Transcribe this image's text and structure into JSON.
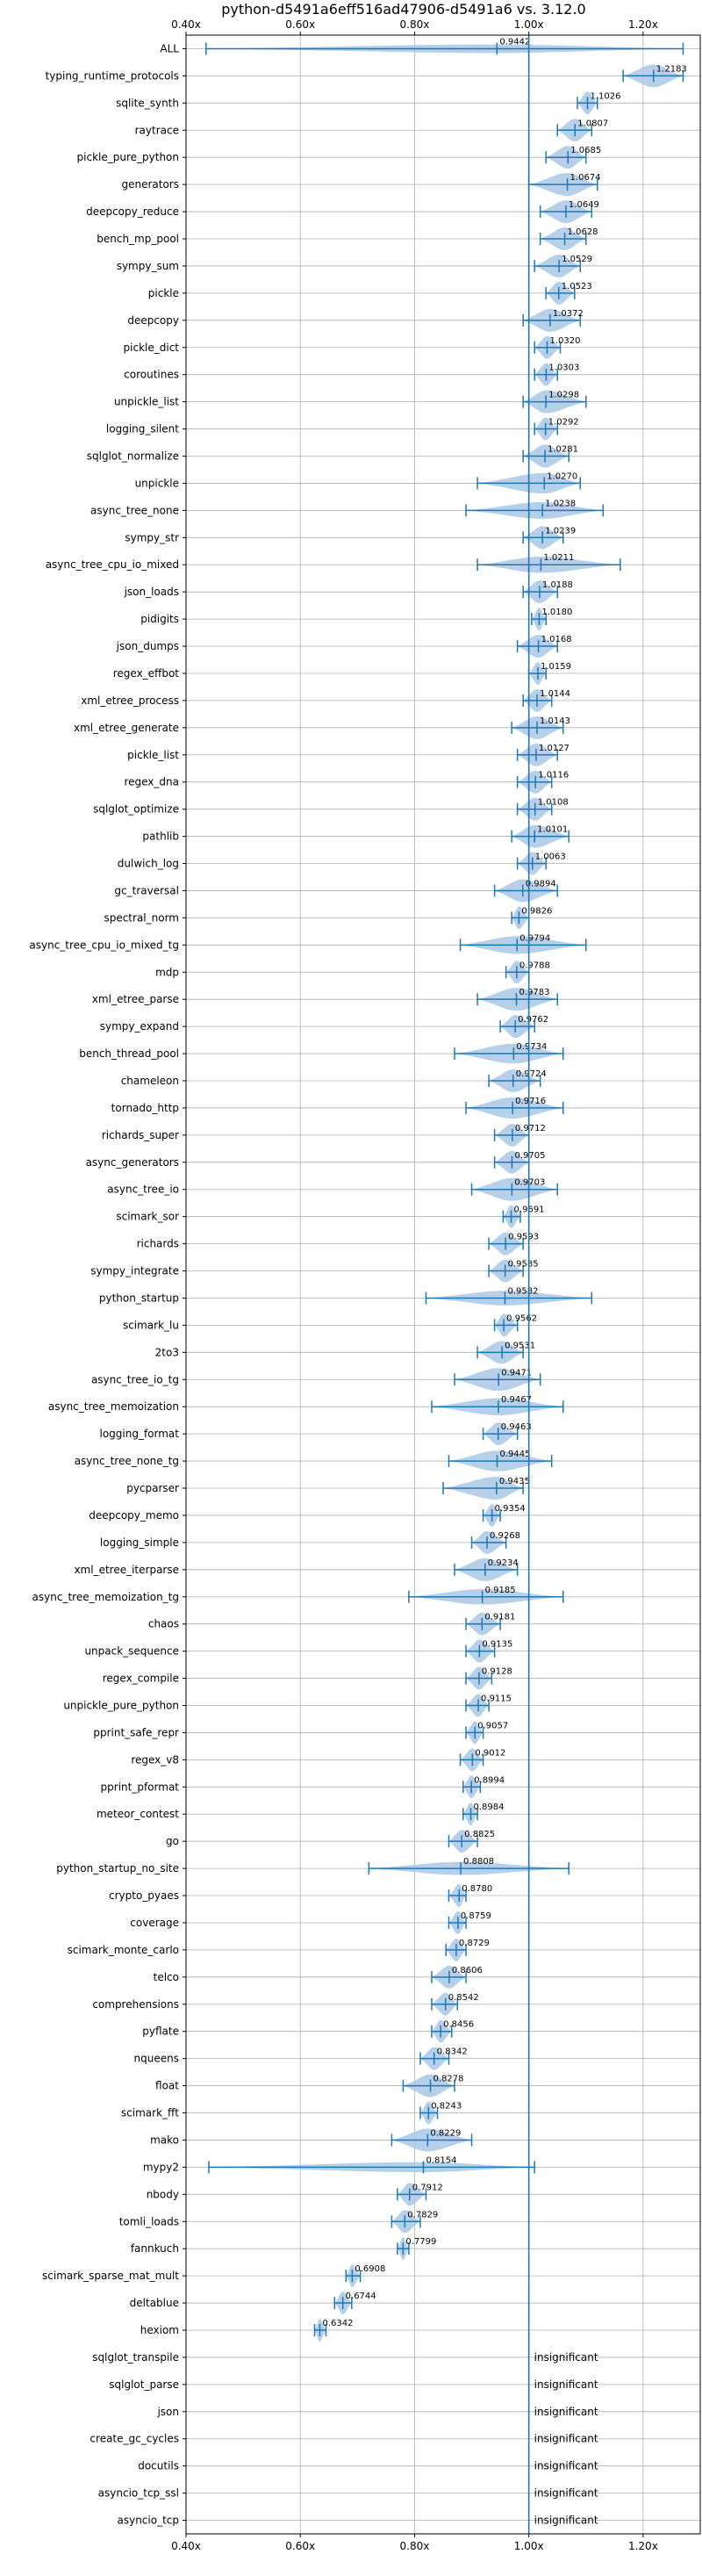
{
  "chart_data": {
    "type": "violin",
    "title": "python-d5491a6eff516ad47906-d5491a6 vs. 3.12.0",
    "xlabel": "",
    "ylabel": "",
    "xlim": [
      0.4,
      1.3
    ],
    "x_ticks": [
      0.4,
      0.6,
      0.8,
      1.0,
      1.2
    ],
    "x_tick_labels": [
      "0.40x",
      "0.60x",
      "0.80x",
      "1.00x",
      "1.20x"
    ],
    "reference_x": 1.0,
    "grid": true,
    "colors": {
      "violin": "#aac8e6",
      "line": "#1f77b4",
      "grid": "#b0b0b0",
      "ref": "#1f77b4"
    },
    "benchmarks": [
      {
        "name": "ALL",
        "mean": 0.9442,
        "label": "0.9442",
        "min": 0.435,
        "max": 1.27
      },
      {
        "name": "typing_runtime_protocols",
        "mean": 1.2183,
        "label": "1.2183",
        "min": 1.165,
        "max": 1.27
      },
      {
        "name": "sqlite_synth",
        "mean": 1.1026,
        "label": "1.1026",
        "min": 1.085,
        "max": 1.12
      },
      {
        "name": "raytrace",
        "mean": 1.0807,
        "label": "1.0807",
        "min": 1.05,
        "max": 1.11
      },
      {
        "name": "pickle_pure_python",
        "mean": 1.0685,
        "label": "1.0685",
        "min": 1.03,
        "max": 1.1
      },
      {
        "name": "generators",
        "mean": 1.0674,
        "label": "1.0674",
        "min": 1.0,
        "max": 1.12
      },
      {
        "name": "deepcopy_reduce",
        "mean": 1.0649,
        "label": "1.0649",
        "min": 1.02,
        "max": 1.11
      },
      {
        "name": "bench_mp_pool",
        "mean": 1.0628,
        "label": "1.0628",
        "min": 1.02,
        "max": 1.1
      },
      {
        "name": "sympy_sum",
        "mean": 1.0529,
        "label": "1.0529",
        "min": 1.01,
        "max": 1.09
      },
      {
        "name": "pickle",
        "mean": 1.0523,
        "label": "1.0523",
        "min": 1.03,
        "max": 1.08
      },
      {
        "name": "deepcopy",
        "mean": 1.0372,
        "label": "1.0372",
        "min": 0.99,
        "max": 1.09
      },
      {
        "name": "pickle_dict",
        "mean": 1.032,
        "label": "1.0320",
        "min": 1.01,
        "max": 1.055
      },
      {
        "name": "coroutines",
        "mean": 1.0303,
        "label": "1.0303",
        "min": 1.01,
        "max": 1.05
      },
      {
        "name": "unpickle_list",
        "mean": 1.0298,
        "label": "1.0298",
        "min": 0.99,
        "max": 1.1
      },
      {
        "name": "logging_silent",
        "mean": 1.0292,
        "label": "1.0292",
        "min": 1.01,
        "max": 1.05
      },
      {
        "name": "sqlglot_normalize",
        "mean": 1.0281,
        "label": "1.0281",
        "min": 0.99,
        "max": 1.07
      },
      {
        "name": "unpickle",
        "mean": 1.027,
        "label": "1.0270",
        "min": 0.91,
        "max": 1.09
      },
      {
        "name": "async_tree_none",
        "mean": 1.0238,
        "label": "1.0238",
        "min": 0.89,
        "max": 1.13
      },
      {
        "name": "sympy_str",
        "mean": 1.0239,
        "label": "1.0239",
        "min": 0.99,
        "max": 1.06
      },
      {
        "name": "async_tree_cpu_io_mixed",
        "mean": 1.0211,
        "label": "1.0211",
        "min": 0.91,
        "max": 1.16
      },
      {
        "name": "json_loads",
        "mean": 1.0188,
        "label": "1.0188",
        "min": 0.99,
        "max": 1.05
      },
      {
        "name": "pidigits",
        "mean": 1.018,
        "label": "1.0180",
        "min": 1.005,
        "max": 1.03
      },
      {
        "name": "json_dumps",
        "mean": 1.0168,
        "label": "1.0168",
        "min": 0.98,
        "max": 1.05
      },
      {
        "name": "regex_effbot",
        "mean": 1.0159,
        "label": "1.0159",
        "min": 1.0,
        "max": 1.03
      },
      {
        "name": "xml_etree_process",
        "mean": 1.0144,
        "label": "1.0144",
        "min": 0.99,
        "max": 1.04
      },
      {
        "name": "xml_etree_generate",
        "mean": 1.0143,
        "label": "1.0143",
        "min": 0.97,
        "max": 1.06
      },
      {
        "name": "pickle_list",
        "mean": 1.0127,
        "label": "1.0127",
        "min": 0.98,
        "max": 1.05
      },
      {
        "name": "regex_dna",
        "mean": 1.0116,
        "label": "1.0116",
        "min": 0.98,
        "max": 1.04
      },
      {
        "name": "sqlglot_optimize",
        "mean": 1.0108,
        "label": "1.0108",
        "min": 0.98,
        "max": 1.04
      },
      {
        "name": "pathlib",
        "mean": 1.0101,
        "label": "1.0101",
        "min": 0.97,
        "max": 1.07
      },
      {
        "name": "dulwich_log",
        "mean": 1.0063,
        "label": "1.0063",
        "min": 0.98,
        "max": 1.03
      },
      {
        "name": "gc_traversal",
        "mean": 0.9894,
        "label": "0.9894",
        "min": 0.94,
        "max": 1.05
      },
      {
        "name": "spectral_norm",
        "mean": 0.9826,
        "label": "0.9826",
        "min": 0.97,
        "max": 1.0
      },
      {
        "name": "async_tree_cpu_io_mixed_tg",
        "mean": 0.9794,
        "label": "0.9794",
        "min": 0.88,
        "max": 1.1
      },
      {
        "name": "mdp",
        "mean": 0.9788,
        "label": "0.9788",
        "min": 0.96,
        "max": 1.0
      },
      {
        "name": "xml_etree_parse",
        "mean": 0.9783,
        "label": "0.9783",
        "min": 0.91,
        "max": 1.05
      },
      {
        "name": "sympy_expand",
        "mean": 0.9762,
        "label": "0.9762",
        "min": 0.95,
        "max": 1.01
      },
      {
        "name": "bench_thread_pool",
        "mean": 0.9734,
        "label": "0.9734",
        "min": 0.87,
        "max": 1.06
      },
      {
        "name": "chameleon",
        "mean": 0.9724,
        "label": "0.9724",
        "min": 0.93,
        "max": 1.02
      },
      {
        "name": "tornado_http",
        "mean": 0.9716,
        "label": "0.9716",
        "min": 0.89,
        "max": 1.06
      },
      {
        "name": "richards_super",
        "mean": 0.9712,
        "label": "0.9712",
        "min": 0.94,
        "max": 1.0
      },
      {
        "name": "async_generators",
        "mean": 0.9705,
        "label": "0.9705",
        "min": 0.94,
        "max": 1.0
      },
      {
        "name": "async_tree_io",
        "mean": 0.9703,
        "label": "0.9703",
        "min": 0.9,
        "max": 1.05
      },
      {
        "name": "scimark_sor",
        "mean": 0.9691,
        "label": "0.9691",
        "min": 0.955,
        "max": 0.985
      },
      {
        "name": "richards",
        "mean": 0.9593,
        "label": "0.9593",
        "min": 0.93,
        "max": 0.99
      },
      {
        "name": "sympy_integrate",
        "mean": 0.9585,
        "label": "0.9585",
        "min": 0.93,
        "max": 0.99
      },
      {
        "name": "python_startup",
        "mean": 0.9582,
        "label": "0.9582",
        "min": 0.82,
        "max": 1.11
      },
      {
        "name": "scimark_lu",
        "mean": 0.9562,
        "label": "0.9562",
        "min": 0.94,
        "max": 0.98
      },
      {
        "name": "2to3",
        "mean": 0.9531,
        "label": "0.9531",
        "min": 0.91,
        "max": 0.99
      },
      {
        "name": "async_tree_io_tg",
        "mean": 0.9471,
        "label": "0.9471",
        "min": 0.87,
        "max": 1.02
      },
      {
        "name": "async_tree_memoization",
        "mean": 0.9467,
        "label": "0.9467",
        "min": 0.83,
        "max": 1.06
      },
      {
        "name": "logging_format",
        "mean": 0.9463,
        "label": "0.9463",
        "min": 0.92,
        "max": 0.98
      },
      {
        "name": "async_tree_none_tg",
        "mean": 0.9445,
        "label": "0.9445",
        "min": 0.86,
        "max": 1.04
      },
      {
        "name": "pycparser",
        "mean": 0.9435,
        "label": "0.9435",
        "min": 0.85,
        "max": 0.99
      },
      {
        "name": "deepcopy_memo",
        "mean": 0.9354,
        "label": "0.9354",
        "min": 0.92,
        "max": 0.95
      },
      {
        "name": "logging_simple",
        "mean": 0.9268,
        "label": "0.9268",
        "min": 0.9,
        "max": 0.96
      },
      {
        "name": "xml_etree_iterparse",
        "mean": 0.9234,
        "label": "0.9234",
        "min": 0.87,
        "max": 0.98
      },
      {
        "name": "async_tree_memoization_tg",
        "mean": 0.9185,
        "label": "0.9185",
        "min": 0.79,
        "max": 1.06
      },
      {
        "name": "chaos",
        "mean": 0.9181,
        "label": "0.9181",
        "min": 0.89,
        "max": 0.95
      },
      {
        "name": "unpack_sequence",
        "mean": 0.9135,
        "label": "0.9135",
        "min": 0.89,
        "max": 0.94
      },
      {
        "name": "regex_compile",
        "mean": 0.9128,
        "label": "0.9128",
        "min": 0.89,
        "max": 0.935
      },
      {
        "name": "unpickle_pure_python",
        "mean": 0.9115,
        "label": "0.9115",
        "min": 0.89,
        "max": 0.93
      },
      {
        "name": "pprint_safe_repr",
        "mean": 0.9057,
        "label": "0.9057",
        "min": 0.89,
        "max": 0.92
      },
      {
        "name": "regex_v8",
        "mean": 0.9012,
        "label": "0.9012",
        "min": 0.88,
        "max": 0.92
      },
      {
        "name": "pprint_pformat",
        "mean": 0.8994,
        "label": "0.8994",
        "min": 0.885,
        "max": 0.915
      },
      {
        "name": "meteor_contest",
        "mean": 0.8984,
        "label": "0.8984",
        "min": 0.885,
        "max": 0.91
      },
      {
        "name": "go",
        "mean": 0.8825,
        "label": "0.8825",
        "min": 0.86,
        "max": 0.91
      },
      {
        "name": "python_startup_no_site",
        "mean": 0.8808,
        "label": "0.8808",
        "min": 0.72,
        "max": 1.07
      },
      {
        "name": "crypto_pyaes",
        "mean": 0.878,
        "label": "0.8780",
        "min": 0.86,
        "max": 0.89
      },
      {
        "name": "coverage",
        "mean": 0.8759,
        "label": "0.8759",
        "min": 0.86,
        "max": 0.89
      },
      {
        "name": "scimark_monte_carlo",
        "mean": 0.8729,
        "label": "0.8729",
        "min": 0.855,
        "max": 0.89
      },
      {
        "name": "telco",
        "mean": 0.8606,
        "label": "0.8606",
        "min": 0.83,
        "max": 0.89
      },
      {
        "name": "comprehensions",
        "mean": 0.8542,
        "label": "0.8542",
        "min": 0.83,
        "max": 0.875
      },
      {
        "name": "pyflate",
        "mean": 0.8456,
        "label": "0.8456",
        "min": 0.83,
        "max": 0.865
      },
      {
        "name": "nqueens",
        "mean": 0.8342,
        "label": "0.8342",
        "min": 0.81,
        "max": 0.86
      },
      {
        "name": "float",
        "mean": 0.8278,
        "label": "0.8278",
        "min": 0.78,
        "max": 0.87
      },
      {
        "name": "scimark_fft",
        "mean": 0.8243,
        "label": "0.8243",
        "min": 0.81,
        "max": 0.84
      },
      {
        "name": "mako",
        "mean": 0.8229,
        "label": "0.8229",
        "min": 0.76,
        "max": 0.9
      },
      {
        "name": "mypy2",
        "mean": 0.8154,
        "label": "0.8154",
        "min": 0.44,
        "max": 1.01
      },
      {
        "name": "nbody",
        "mean": 0.7912,
        "label": "0.7912",
        "min": 0.77,
        "max": 0.82
      },
      {
        "name": "tomli_loads",
        "mean": 0.7829,
        "label": "0.7829",
        "min": 0.76,
        "max": 0.81
      },
      {
        "name": "fannkuch",
        "mean": 0.7799,
        "label": "0.7799",
        "min": 0.77,
        "max": 0.79
      },
      {
        "name": "scimark_sparse_mat_mult",
        "mean": 0.6908,
        "label": "0.6908",
        "min": 0.68,
        "max": 0.705
      },
      {
        "name": "deltablue",
        "mean": 0.6744,
        "label": "0.6744",
        "min": 0.66,
        "max": 0.69
      },
      {
        "name": "hexiom",
        "mean": 0.6342,
        "label": "0.6342",
        "min": 0.625,
        "max": 0.645
      },
      {
        "name": "sqlglot_transpile",
        "label": "insignificant"
      },
      {
        "name": "sqlglot_parse",
        "label": "insignificant"
      },
      {
        "name": "json",
        "label": "insignificant"
      },
      {
        "name": "create_gc_cycles",
        "label": "insignificant"
      },
      {
        "name": "docutils",
        "label": "insignificant"
      },
      {
        "name": "asyncio_tcp_ssl",
        "label": "insignificant"
      },
      {
        "name": "asyncio_tcp",
        "label": "insignificant"
      }
    ]
  }
}
